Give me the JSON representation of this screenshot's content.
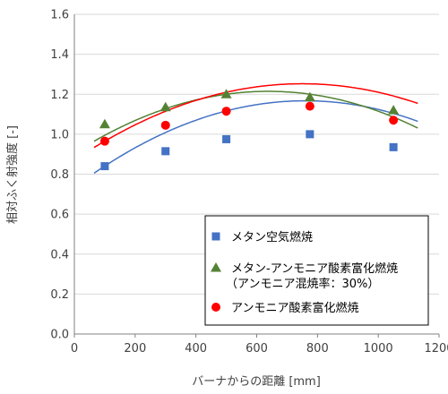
{
  "chart_data": {
    "type": "scatter",
    "title": "",
    "xlabel": "バーナからの距離 [mm]",
    "ylabel": "相対ふく射強度 [-]",
    "xlim": [
      0,
      1200
    ],
    "ylim": [
      0,
      1.6
    ],
    "xticks": [
      "0",
      "200",
      "400",
      "600",
      "800",
      "1000",
      "1200"
    ],
    "yticks": [
      "0.0",
      "0.2",
      "0.4",
      "0.6",
      "0.8",
      "1.0",
      "1.2",
      "1.4",
      "1.6"
    ],
    "grid": "horizontal",
    "legend_position": "bottom-right",
    "series": [
      {
        "name": "メタン空気燃焼",
        "marker": "square",
        "color": "#4472C4",
        "x": [
          100,
          300,
          500,
          775,
          1050
        ],
        "y": [
          0.84,
          0.915,
          0.975,
          1.0,
          0.935
        ],
        "fit": [
          -7.5e-07,
          0.00114,
          0.734
        ],
        "fit_range": [
          65,
          1130
        ]
      },
      {
        "name": "メタン-アンモニア酸素富化燃焼",
        "name_line2": "（アンモニア混焼率：30%）",
        "marker": "triangle",
        "color": "#548235",
        "x": [
          100,
          300,
          500,
          775,
          1050
        ],
        "y": [
          1.05,
          1.135,
          1.2,
          1.185,
          1.12
        ],
        "fit": [
          -7.6e-07,
          0.00097,
          0.905
        ],
        "fit_range": [
          65,
          1130
        ]
      },
      {
        "name": "アンモニア酸素富化燃焼",
        "marker": "circle",
        "color": "#FF0000",
        "x": [
          100,
          300,
          500,
          775,
          1050
        ],
        "y": [
          0.965,
          1.045,
          1.115,
          1.14,
          1.07
        ],
        "fit": [
          -6.8e-07,
          0.00102,
          0.87
        ],
        "fit_range": [
          65,
          1130
        ]
      }
    ]
  }
}
